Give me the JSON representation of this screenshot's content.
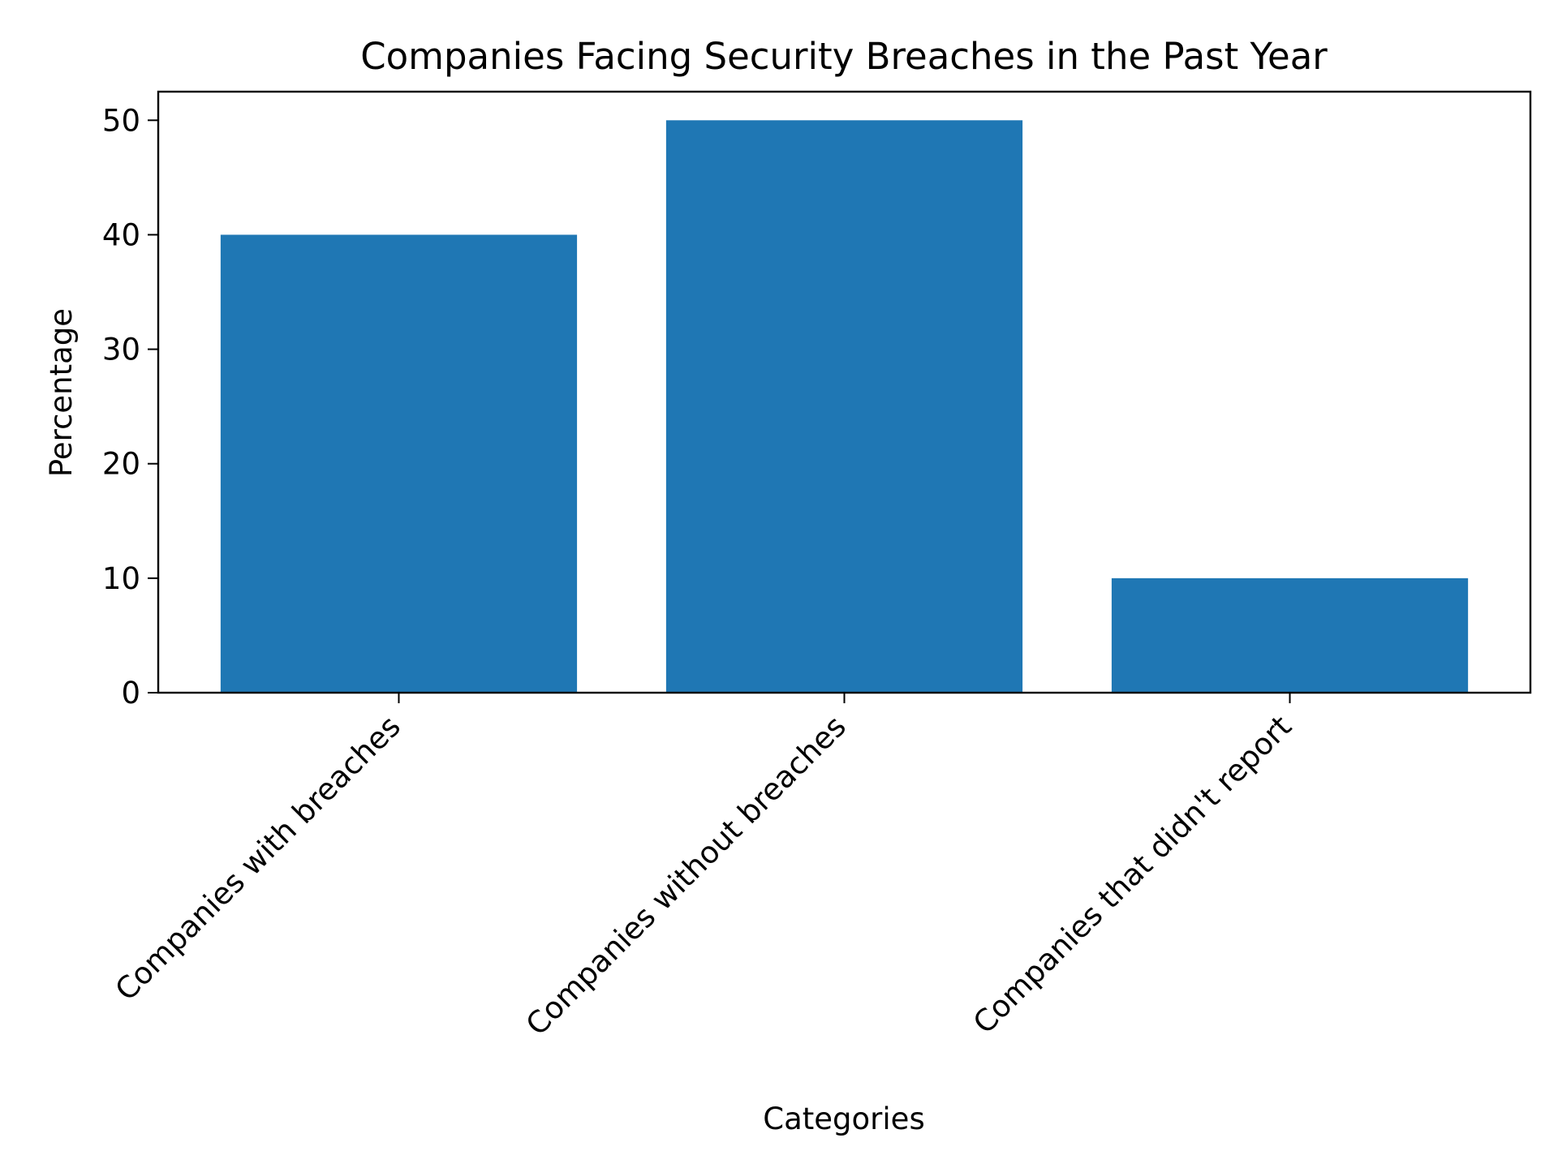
{
  "chart_data": {
    "type": "bar",
    "title": "Companies Facing Security Breaches in the Past Year",
    "xlabel": "Categories",
    "ylabel": "Percentage",
    "categories": [
      "Companies with breaches",
      "Companies without breaches",
      "Companies that didn't report"
    ],
    "values": [
      40,
      50,
      10
    ],
    "ylim": [
      0,
      52.5
    ],
    "yticks": [
      "0",
      "10",
      "20",
      "30",
      "40",
      "50"
    ],
    "bar_color": "#1f77b4",
    "grid": false,
    "legend": "none"
  }
}
